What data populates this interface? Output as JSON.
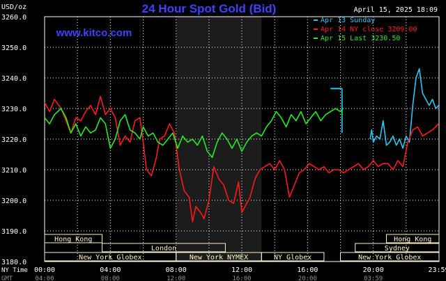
{
  "chart_data": {
    "type": "line",
    "title": "24 Hour Spot Gold (Bid)",
    "watermark": "www.kitco.com",
    "timestamp": "April 15, 2025 18:09",
    "y_unit": "USD/oz",
    "ylim": [
      3180,
      3260
    ],
    "y_ticks": [
      "3260.0",
      "3250.0",
      "3240.0",
      "3230.0",
      "3220.0",
      "3210.0",
      "3200.0",
      "3190.0",
      "3180.0"
    ],
    "xlim": [
      0,
      24
    ],
    "x_tick_labels": [
      "00:00",
      "04:00",
      "08:00",
      "12:00",
      "16:00",
      "20:00",
      "23:59"
    ],
    "x_label_ny": "NY Time",
    "x_label_gmt": "GMT",
    "gmt_ticks": [
      "04:00",
      "08:00",
      "12:00",
      "16:00",
      "20:00",
      "03:59"
    ],
    "grid": true,
    "legend_position": "top-right",
    "colors": {
      "background": "#000000",
      "plot_bg": "#000000",
      "grid": "#ffffff",
      "title": "#4040ff",
      "watermark": "#4040ff",
      "session_box": "#fdf5c9",
      "highlight": "#1c1c1c"
    },
    "series": [
      {
        "name": "Apr 13 Sunday",
        "color": "#29c8f0",
        "x": [
          19.8,
          19.9,
          20.0,
          20.2,
          20.4,
          20.6,
          20.8,
          21.0,
          21.2,
          21.4,
          21.6,
          21.8,
          22.0,
          22.2,
          22.4,
          22.6,
          22.8,
          23.0,
          23.2,
          23.4,
          23.6,
          23.8,
          23.98
        ],
        "y": [
          3220,
          3223,
          3219,
          3221,
          3220,
          3226,
          3218,
          3219,
          3221,
          3218,
          3220,
          3217,
          3221,
          3219,
          3231,
          3240,
          3243,
          3235,
          3233,
          3231,
          3233,
          3230,
          3231
        ]
      },
      {
        "name": "Apr 14 NY close",
        "value": "3209.00",
        "color": "#ff1a1a",
        "x": [
          0,
          0.3,
          0.6,
          1.0,
          1.3,
          1.6,
          1.9,
          2.2,
          2.5,
          2.8,
          3.1,
          3.4,
          3.7,
          4.0,
          4.3,
          4.6,
          4.9,
          5.2,
          5.5,
          5.8,
          6.0,
          6.2,
          6.5,
          6.8,
          7.0,
          7.3,
          7.6,
          7.9,
          8.2,
          8.5,
          8.8,
          9.0,
          9.2,
          9.5,
          9.7,
          10.0,
          10.3,
          10.6,
          10.9,
          11.2,
          11.5,
          11.8,
          12.0,
          12.2,
          12.5,
          12.8,
          13.1,
          13.4,
          13.7,
          14.0,
          14.3,
          14.6,
          14.9,
          15.2,
          15.5,
          15.8,
          16.1,
          16.4,
          16.7,
          17.0,
          17.3,
          17.6,
          17.9,
          18.2,
          18.5,
          18.8,
          19.1,
          19.4,
          19.7,
          20.0,
          20.3,
          20.6,
          20.9,
          21.2,
          21.5,
          21.8,
          22.1,
          22.4,
          22.7,
          23.0,
          23.3,
          23.6,
          23.98
        ],
        "y": [
          3232,
          3229,
          3233,
          3230,
          3226,
          3222,
          3227,
          3226,
          3229,
          3231,
          3228,
          3234,
          3228,
          3230,
          3227,
          3218,
          3221,
          3219,
          3226,
          3227,
          3219,
          3210,
          3208,
          3214,
          3220,
          3221,
          3225,
          3222,
          3210,
          3203,
          3201,
          3193,
          3198,
          3196,
          3194,
          3200,
          3211,
          3207,
          3205,
          3200,
          3199,
          3206,
          3196,
          3198,
          3201,
          3207,
          3210,
          3211,
          3212,
          3210,
          3213,
          3210,
          3201,
          3205,
          3209,
          3210,
          3212,
          3211,
          3210,
          3211,
          3209,
          3210,
          3210,
          3209,
          3210,
          3211,
          3212,
          3210,
          3211,
          3213,
          3211,
          3212,
          3212,
          3210,
          3213,
          3211,
          3219,
          3223,
          3224,
          3221,
          3222,
          3223,
          3225
        ]
      },
      {
        "name": "Apr 15 Last",
        "value": "3230.50",
        "color": "#22ee22",
        "x": [
          0,
          0.3,
          0.6,
          1.0,
          1.3,
          1.6,
          1.9,
          2.2,
          2.5,
          2.8,
          3.1,
          3.4,
          3.7,
          4.0,
          4.3,
          4.6,
          4.9,
          5.2,
          5.5,
          5.8,
          6.0,
          6.3,
          6.6,
          6.9,
          7.2,
          7.5,
          7.8,
          8.1,
          8.4,
          8.7,
          9.0,
          9.3,
          9.6,
          9.9,
          10.2,
          10.5,
          10.8,
          11.1,
          11.4,
          11.7,
          12.0,
          12.3,
          12.6,
          12.9,
          13.2,
          13.5,
          13.8,
          14.1,
          14.4,
          14.7,
          15.0,
          15.3,
          15.6,
          15.9,
          16.2,
          16.5,
          16.8,
          17.1,
          17.4,
          17.7,
          18.0,
          18.15
        ],
        "y": [
          3227,
          3225,
          3228,
          3230,
          3227,
          3222,
          3225,
          3221,
          3224,
          3222,
          3223,
          3227,
          3225,
          3217,
          3220,
          3226,
          3228,
          3223,
          3222,
          3220,
          3224,
          3221,
          3222,
          3219,
          3218,
          3220,
          3222,
          3217,
          3221,
          3219,
          3220,
          3218,
          3221,
          3216,
          3214,
          3219,
          3222,
          3220,
          3217,
          3220,
          3216,
          3219,
          3221,
          3222,
          3221,
          3224,
          3226,
          3229,
          3227,
          3224,
          3228,
          3226,
          3229,
          3225,
          3227,
          3229,
          3226,
          3228,
          3229,
          3230,
          3229,
          3230
        ]
      }
    ],
    "sessions": [
      {
        "label": "Hong Kong",
        "start": 0,
        "end": 3.5,
        "row": 0
      },
      {
        "label": "London",
        "start": 3.5,
        "end": 11.0,
        "row": 1
      },
      {
        "label": "New York Globex",
        "start": 0,
        "end": 8.0,
        "row": 2
      },
      {
        "label": "New York NYMEX",
        "start": 8.0,
        "end": 13.2,
        "row": 2
      },
      {
        "label": "NY Globex",
        "start": 13.2,
        "end": 17.0,
        "row": 2
      },
      {
        "label": "Hong Kong",
        "start": 20.8,
        "end": 24,
        "row": 0
      },
      {
        "label": "Sydney",
        "start": 18.9,
        "end": 24,
        "row": 1
      },
      {
        "label": "New York Globex",
        "start": 18.0,
        "end": 24,
        "row": 2
      }
    ]
  }
}
